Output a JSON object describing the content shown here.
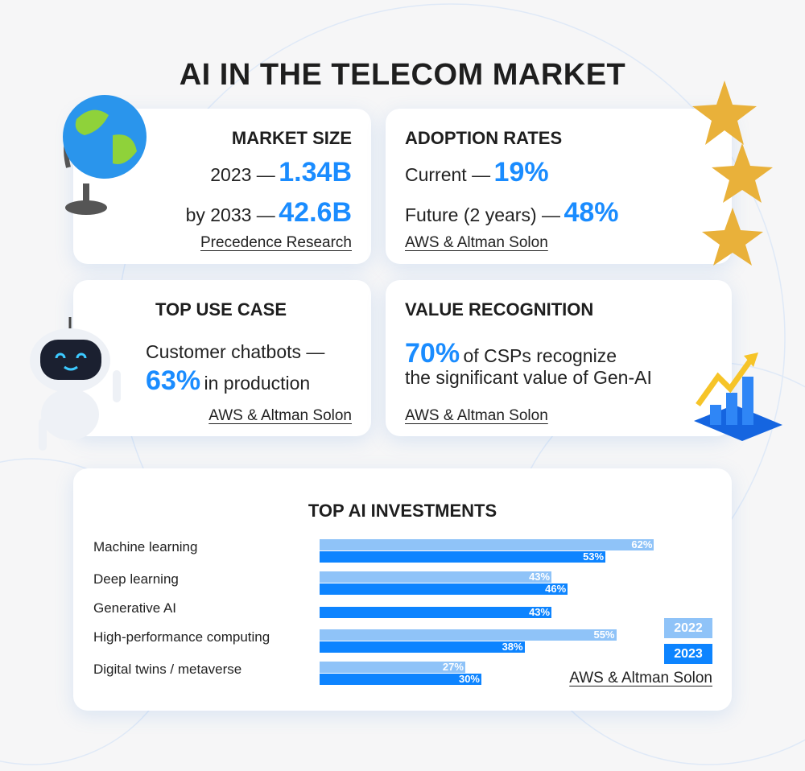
{
  "title": "AI IN THE TELECOM MARKET",
  "market": {
    "heading": "MARKET SIZE",
    "l1_label": "2023 —",
    "l1_value": "1.34B",
    "l2_label": "by 2033 —",
    "l2_value": "42.6B",
    "source": "Precedence Research"
  },
  "adoption": {
    "heading": "ADOPTION RATES",
    "l1_label": "Current —",
    "l1_value": "19%",
    "l2_label": "Future (2 years) —",
    "l2_value": "48%",
    "source": "AWS & Altman Solon"
  },
  "usecase": {
    "heading": "TOP USE CASE",
    "l1": "Customer chatbots —",
    "value": "63%",
    "l2": "in production",
    "source": "AWS & Altman Solon"
  },
  "value": {
    "heading": "VALUE RECOGNITION",
    "value": "70%",
    "l1": "of CSPs recognize",
    "l2": "the significant value of Gen-AI",
    "source": "AWS & Altman Solon"
  },
  "colors": {
    "accent": "#1a8cff",
    "bar2022": "#8fc3f8",
    "bar2023": "#0d84ff"
  },
  "chart_data": {
    "type": "bar",
    "title": "TOP AI INVESTMENTS",
    "orientation": "horizontal",
    "categories": [
      "Machine learning",
      "Deep learning",
      "Generative AI",
      "High-performance computing",
      "Digital twins / metaverse"
    ],
    "series": [
      {
        "name": "2022",
        "values": [
          62,
          43,
          null,
          55,
          27
        ],
        "labels": [
          "62%",
          "43%",
          "",
          "55%",
          "27%"
        ]
      },
      {
        "name": "2023",
        "values": [
          53,
          46,
          43,
          38,
          30
        ],
        "labels": [
          "53%",
          "46%",
          "43%",
          "38%",
          "30%"
        ]
      }
    ],
    "unit": "%",
    "legend": "right",
    "grid": false,
    "source": "AWS & Altman Solon"
  }
}
